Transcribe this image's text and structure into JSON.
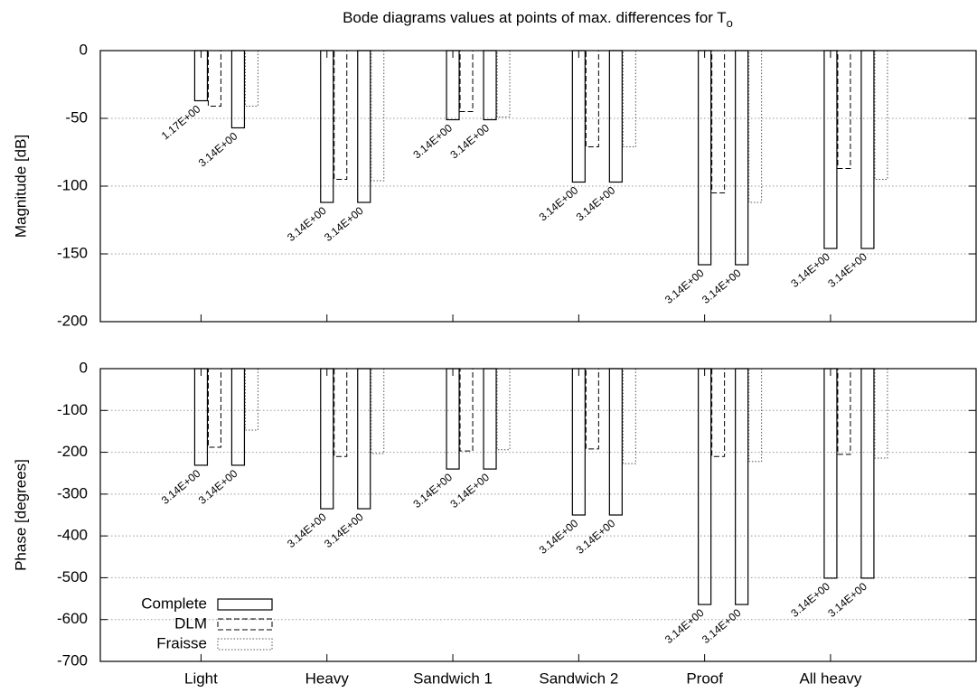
{
  "chart_data": [
    {
      "type": "bar",
      "title": "Bode diagrams values at points of max. differences for T",
      "title_subscript": "o",
      "ylabel": "Magnitude [dB]",
      "ylim": [
        -200,
        0
      ],
      "yticks": [
        0,
        -50,
        -100,
        -150,
        -200
      ],
      "grid": true,
      "series": [
        {
          "color": "#000000",
          "dash": "solid",
          "values": [
            [
              -37,
              -57
            ],
            [
              -112,
              -112
            ],
            [
              -51,
              -51
            ],
            [
              -97,
              -97
            ],
            [
              -158,
              -158
            ],
            [
              -146,
              -146
            ]
          ]
        },
        {
          "color": "#000000",
          "dash": "dashed",
          "values": [
            -41,
            -95,
            -45,
            -71,
            -105,
            -87
          ]
        },
        {
          "color": "#000000",
          "dash": "dotted",
          "values": [
            -41,
            -96,
            -49,
            -71,
            -112,
            -95
          ]
        }
      ],
      "bar_labels": [
        [
          "1.17E+00",
          "3.14E+00"
        ],
        [
          "3.14E+00",
          "3.14E+00"
        ],
        [
          "3.14E+00",
          "3.14E+00"
        ],
        [
          "3.14E+00",
          "3.14E+00"
        ],
        [
          "3.14E+00",
          "3.14E+00"
        ],
        [
          "3.14E+00",
          "3.14E+00"
        ]
      ]
    },
    {
      "type": "bar",
      "ylabel": "Phase [degrees]",
      "categories": [
        "Light",
        "Heavy",
        "Sandwich 1",
        "Sandwich 2",
        "Proof",
        "All heavy"
      ],
      "ylim": [
        -700,
        0
      ],
      "yticks": [
        0,
        -100,
        -200,
        -300,
        -400,
        -500,
        -600,
        -700
      ],
      "grid": true,
      "legend": "lower left",
      "series": [
        {
          "name": "Complete",
          "color": "#000000",
          "dash": "solid",
          "values": [
            [
              -231,
              -231
            ],
            [
              -335,
              -335
            ],
            [
              -240,
              -240
            ],
            [
              -350,
              -350
            ],
            [
              -564,
              -564
            ],
            [
              -501,
              -501
            ]
          ]
        },
        {
          "name": "DLM",
          "color": "#000000",
          "dash": "dashed",
          "values": [
            -188,
            -210,
            -197,
            -192,
            -210,
            -205
          ]
        },
        {
          "name": "Fraisse",
          "color": "#000000",
          "dash": "dotted",
          "values": [
            -147,
            -203,
            -194,
            -227,
            -222,
            -214
          ]
        }
      ],
      "bar_labels": [
        [
          "3.14E+00",
          "3.14E+00"
        ],
        [
          "3.14E+00",
          "3.14E+00"
        ],
        [
          "3.14E+00",
          "3.14E+00"
        ],
        [
          "3.14E+00",
          "3.14E+00"
        ],
        [
          "3.14E+00",
          "3.14E+00"
        ],
        [
          "3.14E+00",
          "3.14E+00"
        ]
      ]
    }
  ]
}
